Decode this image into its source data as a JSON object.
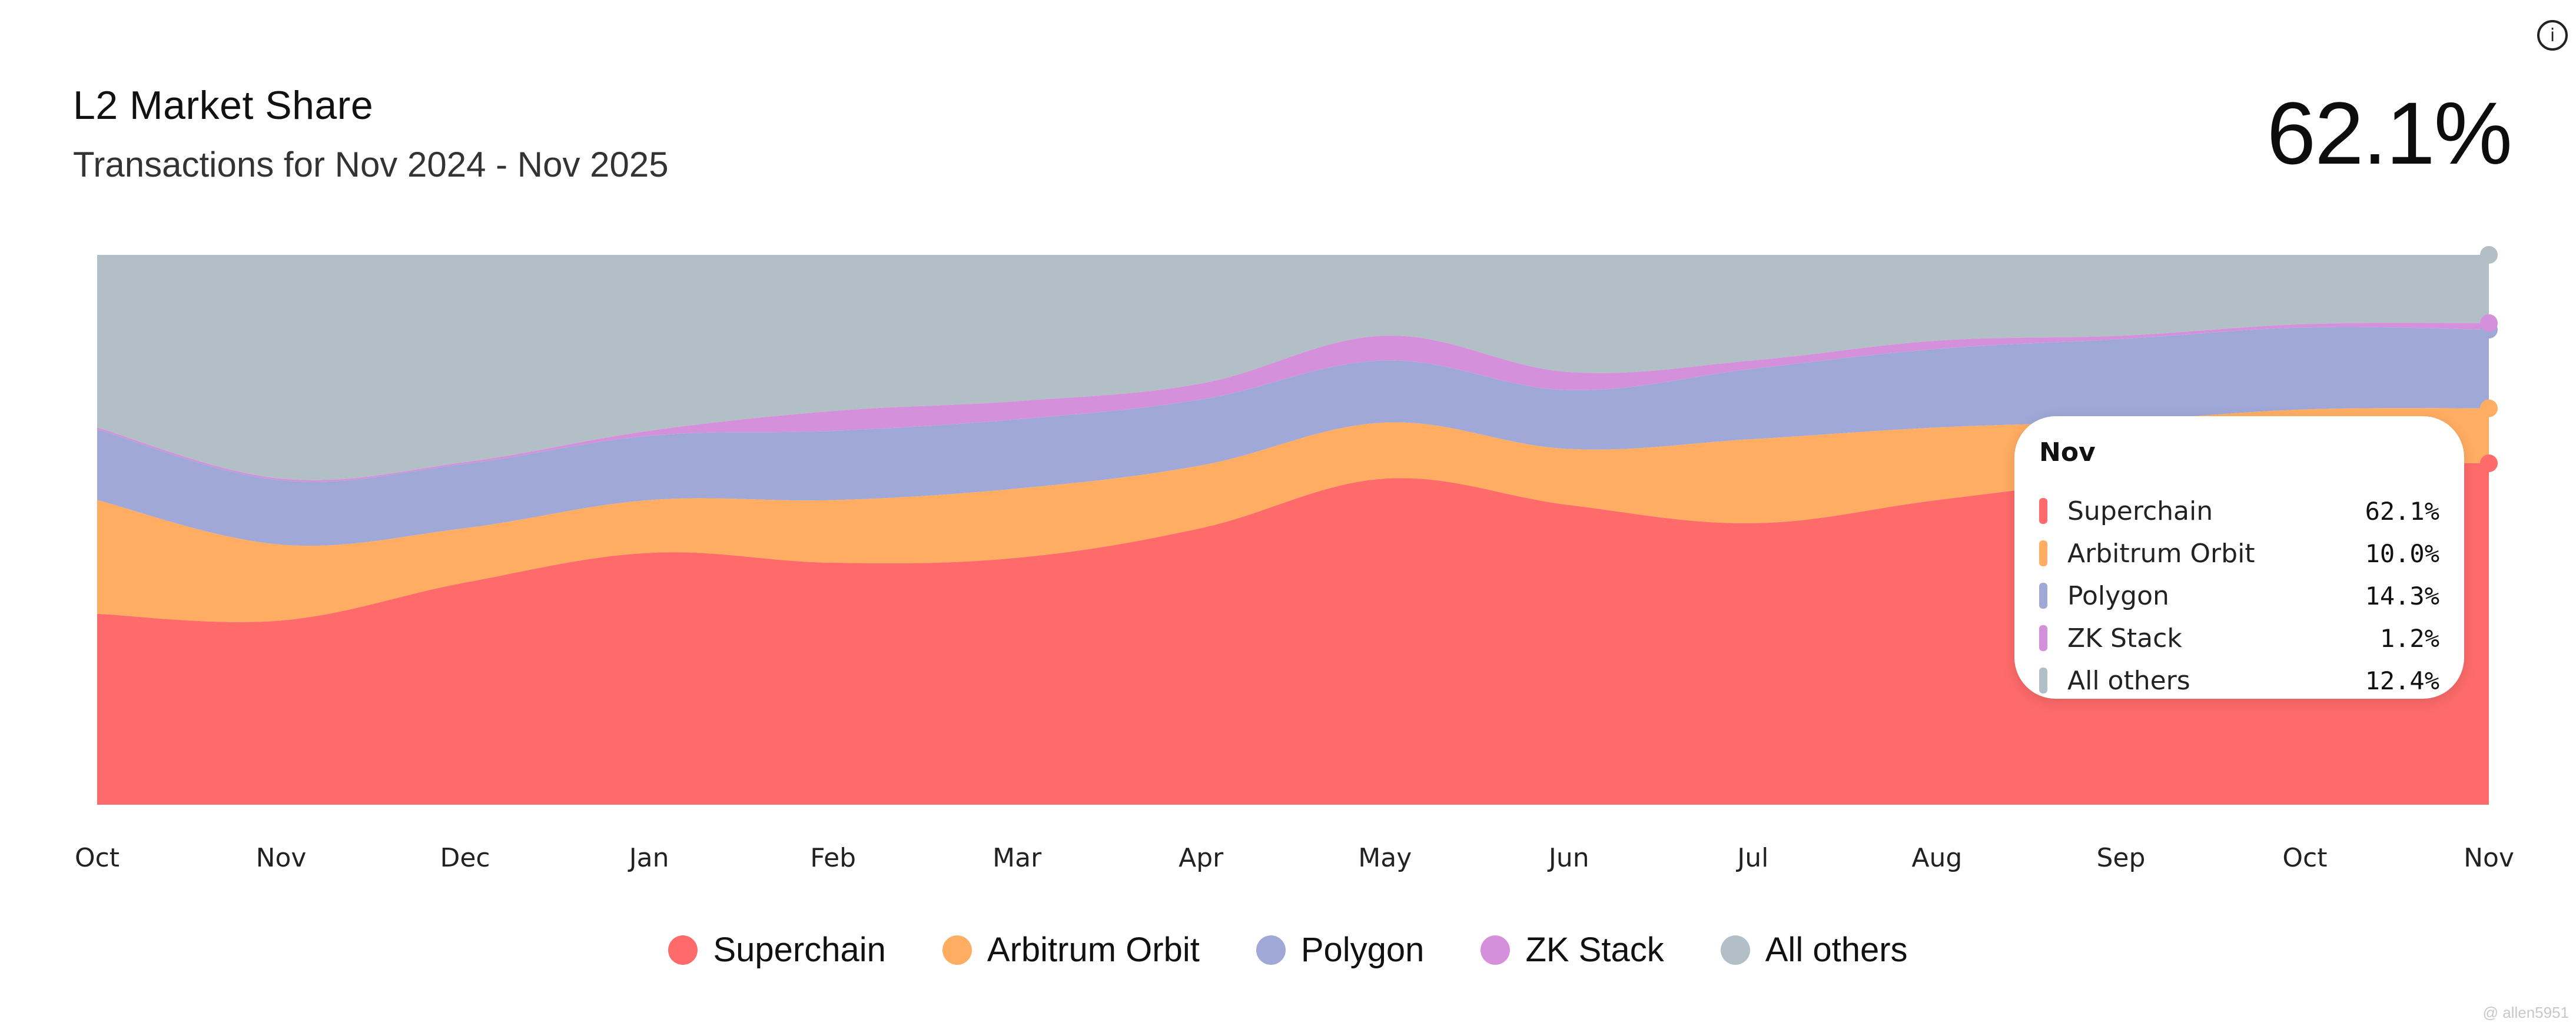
{
  "header": {
    "title": "L2 Market Share",
    "subtitle": "Transactions for Nov 2024 - Nov 2025",
    "headline_value": "62.1%",
    "info_icon": "info-icon"
  },
  "tooltip": {
    "title": "Nov",
    "rows": [
      {
        "label": "Superchain",
        "value": "62.1%",
        "color": "#ff6b6b"
      },
      {
        "label": "Arbitrum Orbit",
        "value": "10.0%",
        "color": "#ffad62"
      },
      {
        "label": "Polygon",
        "value": "14.3%",
        "color": "#a0a8d8"
      },
      {
        "label": "ZK Stack",
        "value": "1.2%",
        "color": "#d490da"
      },
      {
        "label": "All others",
        "value": "12.4%",
        "color": "#b3bfc6"
      }
    ]
  },
  "legend": [
    {
      "label": "Superchain",
      "color": "#ff6b6b"
    },
    {
      "label": "Arbitrum Orbit",
      "color": "#ffad62"
    },
    {
      "label": "Polygon",
      "color": "#a0a8d8"
    },
    {
      "label": "ZK Stack",
      "color": "#d490da"
    },
    {
      "label": "All others",
      "color": "#b3bfc6"
    }
  ],
  "watermark": "@ allen5951",
  "chart_data": {
    "type": "area",
    "stacked": true,
    "normalized_percent": true,
    "title": "L2 Market Share",
    "subtitle": "Transactions for Nov 2024 - Nov 2025",
    "xlabel": "",
    "ylabel": "",
    "ylim": [
      0,
      100
    ],
    "grid": false,
    "legend_position": "bottom",
    "categories": [
      "Oct",
      "Nov",
      "Dec",
      "Jan",
      "Feb",
      "Mar",
      "Apr",
      "May",
      "Jun",
      "Jul",
      "Aug",
      "Sep",
      "Oct",
      "Nov"
    ],
    "series": [
      {
        "name": "Superchain",
        "color": "#ff6b6b",
        "values": [
          34.7,
          33.5,
          40.4,
          45.8,
          44.0,
          44.9,
          50.3,
          59.3,
          54.5,
          51.2,
          55.4,
          59.3,
          62.0,
          62.1
        ]
      },
      {
        "name": "Arbitrum Orbit",
        "color": "#ffad62",
        "values": [
          20.7,
          13.8,
          9.9,
          9.6,
          11.4,
          12.6,
          11.4,
          10.2,
          10.2,
          15.3,
          13.2,
          10.5,
          9.9,
          10.0
        ]
      },
      {
        "name": "Polygon",
        "color": "#a0a8d8",
        "values": [
          12.9,
          11.7,
          11.7,
          11.7,
          12.6,
          12.6,
          12.0,
          11.3,
          10.7,
          12.8,
          14.3,
          14.9,
          14.9,
          14.3
        ]
      },
      {
        "name": "ZK Stack",
        "color": "#d490da",
        "values": [
          0.3,
          0.3,
          0.3,
          0.9,
          3.6,
          3.3,
          2.9,
          4.5,
          3.3,
          1.5,
          1.5,
          0.6,
          0.6,
          1.2
        ]
      },
      {
        "name": "All others",
        "color": "#b3bfc6",
        "values": [
          31.4,
          40.7,
          37.7,
          32.0,
          28.4,
          26.6,
          23.4,
          14.7,
          21.3,
          19.2,
          15.6,
          14.7,
          12.6,
          12.4
        ]
      }
    ],
    "highlighted_category_index": 13
  }
}
